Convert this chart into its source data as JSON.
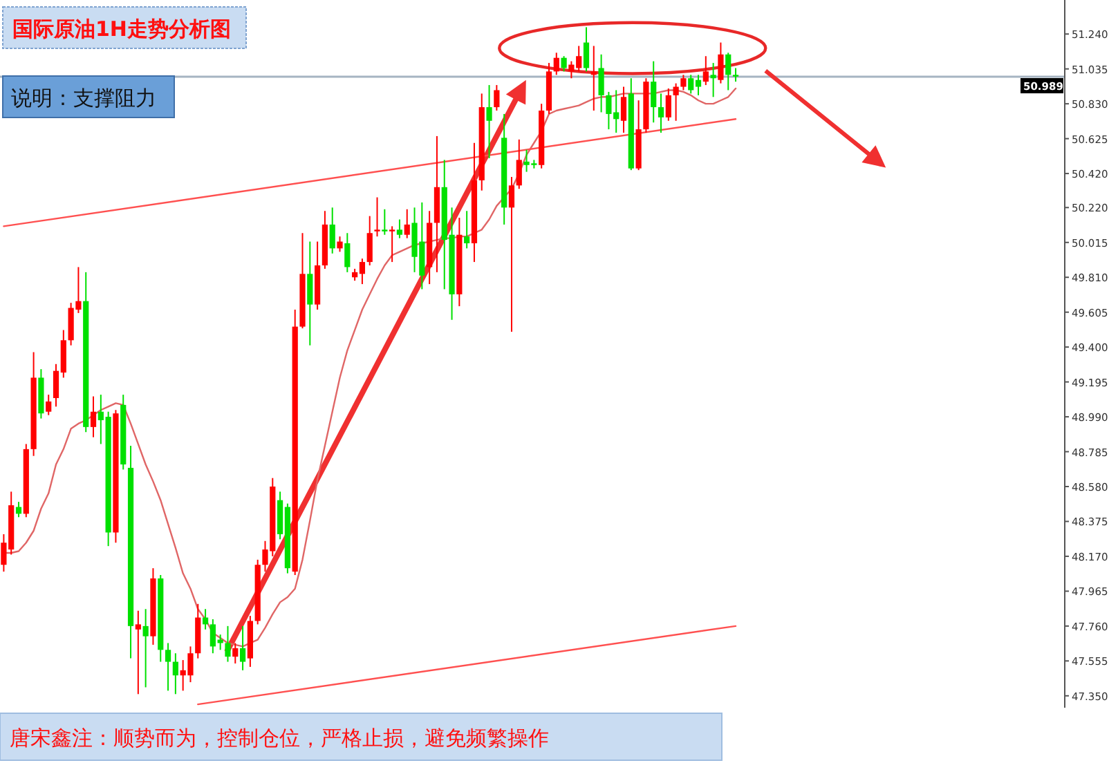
{
  "chart_data": {
    "type": "candlestick",
    "title": "国际原油1H走势分析图",
    "subtitle": "说明：支撑阻力",
    "annotations": [
      "唐宋鑫注：顺势而为，控制仓位，严格止损，避免频繁操作"
    ],
    "categories": [
      null,
      null,
      null,
      null,
      null,
      null,
      null,
      null,
      null,
      null,
      null,
      null,
      null,
      null,
      null,
      null,
      null,
      null,
      null,
      null,
      null,
      null,
      null,
      null,
      null,
      null,
      null,
      null,
      null,
      null,
      null,
      null,
      null,
      null,
      null,
      null,
      null,
      null,
      null,
      null,
      null,
      null,
      null,
      null,
      null,
      null,
      null,
      null,
      null,
      null,
      null,
      null,
      null,
      null,
      null,
      null,
      null,
      null,
      null,
      null,
      null,
      null,
      null,
      null,
      null,
      null,
      null,
      null,
      null,
      null,
      null,
      null,
      null,
      null,
      null,
      null,
      null,
      null,
      null,
      null,
      null,
      null,
      null,
      null,
      null,
      null,
      null,
      null,
      null,
      null,
      null,
      null,
      null,
      null,
      null,
      null,
      null,
      null,
      null
    ],
    "ohlc": [
      [
        48.12,
        48.3,
        48.08,
        48.25
      ],
      [
        48.21,
        48.55,
        48.18,
        48.47
      ],
      [
        48.46,
        48.49,
        48.4,
        48.42
      ],
      [
        48.42,
        48.83,
        48.4,
        48.8
      ],
      [
        48.8,
        49.37,
        48.76,
        49.22
      ],
      [
        49.22,
        49.27,
        48.98,
        49.01
      ],
      [
        49.02,
        49.12,
        49.0,
        49.08
      ],
      [
        49.1,
        49.3,
        49.05,
        49.26
      ],
      [
        49.25,
        49.5,
        49.22,
        49.44
      ],
      [
        49.44,
        49.66,
        49.41,
        49.63
      ],
      [
        49.62,
        49.87,
        49.6,
        49.67
      ],
      [
        49.67,
        49.84,
        48.9,
        48.93
      ],
      [
        48.93,
        49.11,
        48.87,
        49.02
      ],
      [
        49.02,
        49.12,
        48.83,
        48.97
      ],
      [
        48.99,
        49.02,
        48.23,
        48.31
      ],
      [
        48.31,
        49.03,
        48.25,
        49.01
      ],
      [
        49.06,
        49.12,
        48.68,
        48.71
      ],
      [
        48.69,
        48.82,
        47.57,
        47.76
      ],
      [
        47.74,
        47.85,
        47.36,
        47.77
      ],
      [
        47.76,
        47.86,
        47.4,
        47.7
      ],
      [
        47.7,
        48.1,
        47.65,
        48.04
      ],
      [
        48.04,
        48.06,
        47.55,
        47.62
      ],
      [
        47.62,
        47.66,
        47.38,
        47.55
      ],
      [
        47.55,
        47.6,
        47.36,
        47.47
      ],
      [
        47.47,
        47.56,
        47.38,
        47.5
      ],
      [
        47.47,
        47.64,
        47.43,
        47.6
      ],
      [
        47.6,
        47.89,
        47.57,
        47.81
      ],
      [
        47.81,
        47.86,
        47.74,
        47.77
      ],
      [
        47.77,
        47.8,
        47.6,
        47.64
      ],
      [
        47.68,
        47.71,
        47.62,
        47.66
      ],
      [
        47.66,
        47.76,
        47.55,
        47.58
      ],
      [
        47.58,
        47.66,
        47.54,
        47.63
      ],
      [
        47.63,
        47.76,
        47.5,
        47.55
      ],
      [
        47.57,
        47.82,
        47.52,
        47.79
      ],
      [
        47.79,
        48.15,
        47.77,
        48.12
      ],
      [
        48.12,
        48.26,
        48.08,
        48.21
      ],
      [
        48.2,
        48.63,
        48.17,
        48.58
      ],
      [
        48.5,
        48.55,
        48.27,
        48.3
      ],
      [
        48.46,
        48.48,
        48.07,
        48.1
      ],
      [
        48.08,
        49.62,
        48.06,
        49.52
      ],
      [
        49.52,
        50.07,
        49.51,
        49.83
      ],
      [
        49.83,
        50.02,
        49.41,
        49.65
      ],
      [
        49.65,
        50.02,
        49.62,
        49.88
      ],
      [
        49.88,
        50.2,
        49.86,
        50.12
      ],
      [
        50.12,
        50.22,
        49.95,
        49.98
      ],
      [
        49.98,
        50.05,
        49.96,
        50.02
      ],
      [
        50.01,
        50.07,
        49.84,
        49.87
      ],
      [
        49.81,
        49.86,
        49.79,
        49.84
      ],
      [
        49.83,
        49.92,
        49.77,
        49.9
      ],
      [
        49.9,
        50.17,
        49.88,
        50.07
      ],
      [
        50.08,
        50.28,
        50.05,
        50.09
      ],
      [
        50.09,
        50.21,
        50.06,
        50.08
      ],
      [
        50.08,
        50.11,
        49.9,
        50.09
      ],
      [
        50.09,
        50.15,
        50.04,
        50.06
      ],
      [
        50.06,
        50.21,
        50.04,
        50.12
      ],
      [
        50.13,
        50.22,
        49.84,
        49.93
      ],
      [
        50.02,
        50.25,
        49.74,
        49.82
      ],
      [
        49.87,
        50.2,
        49.77,
        50.13
      ],
      [
        50.13,
        50.64,
        49.84,
        50.34
      ],
      [
        50.34,
        50.5,
        49.74,
        50.03
      ],
      [
        50.06,
        50.22,
        49.56,
        49.71
      ],
      [
        49.71,
        50.16,
        49.64,
        50.06
      ],
      [
        50.05,
        50.2,
        49.98,
        50.01
      ],
      [
        50.01,
        50.6,
        49.9,
        50.38
      ],
      [
        50.38,
        50.89,
        50.32,
        50.81
      ],
      [
        50.81,
        50.94,
        50.51,
        50.73
      ],
      [
        50.81,
        50.94,
        50.79,
        50.91
      ],
      [
        50.63,
        50.77,
        50.12,
        50.22
      ],
      [
        50.22,
        50.4,
        49.49,
        50.35
      ],
      [
        50.35,
        50.62,
        50.33,
        50.5
      ],
      [
        50.49,
        50.56,
        50.43,
        50.47
      ],
      [
        50.48,
        50.5,
        50.45,
        50.47
      ],
      [
        50.47,
        50.83,
        50.45,
        50.79
      ],
      [
        50.79,
        51.07,
        50.77,
        51.02
      ],
      [
        51.02,
        51.13,
        51.0,
        51.1
      ],
      [
        51.1,
        51.11,
        51.02,
        51.04
      ],
      [
        51.02,
        51.08,
        50.98,
        51.06
      ],
      [
        51.04,
        51.17,
        51.02,
        51.11
      ],
      [
        51.19,
        51.28,
        51.02,
        51.04
      ],
      [
        51.0,
        51.17,
        50.79,
        51.02
      ],
      [
        51.04,
        51.12,
        50.78,
        50.88
      ],
      [
        50.88,
        50.9,
        50.68,
        50.77
      ],
      [
        50.78,
        50.91,
        50.66,
        50.74
      ],
      [
        50.73,
        50.93,
        50.66,
        50.87
      ],
      [
        50.89,
        50.98,
        50.44,
        50.45
      ],
      [
        50.45,
        50.85,
        50.44,
        50.68
      ],
      [
        50.68,
        50.98,
        50.66,
        50.96
      ],
      [
        50.96,
        51.08,
        50.72,
        50.81
      ],
      [
        50.81,
        50.89,
        50.66,
        50.75
      ],
      [
        50.75,
        50.92,
        50.73,
        50.88
      ],
      [
        50.88,
        50.95,
        50.73,
        50.93
      ],
      [
        50.93,
        51.0,
        50.91,
        50.98
      ],
      [
        50.98,
        51.0,
        50.89,
        50.91
      ],
      [
        50.97,
        51.0,
        50.88,
        50.93
      ],
      [
        50.96,
        51.11,
        50.94,
        51.02
      ],
      [
        51.0,
        51.07,
        50.87,
        50.98
      ],
      [
        50.97,
        51.19,
        50.95,
        51.12
      ],
      [
        51.12,
        51.13,
        50.91,
        51.0
      ],
      [
        51.0,
        51.04,
        50.96,
        50.99
      ]
    ],
    "colors": [
      "#ff0000",
      "#ff0000",
      "#00e000",
      "#ff0000",
      "#ff0000",
      "#00e000",
      "#ff0000",
      "#ff0000",
      "#ff0000",
      "#ff0000",
      "#ff0000",
      "#00e000",
      "#ff0000",
      "#00e000",
      "#00e000",
      "#ff0000",
      "#00e000",
      "#00e000",
      "#ff0000",
      "#00e000",
      "#ff0000",
      "#00e000",
      "#00e000",
      "#00e000",
      "#ff0000",
      "#ff0000",
      "#ff0000",
      "#00e000",
      "#00e000",
      "#00e000",
      "#00e000",
      "#ff0000",
      "#00e000",
      "#ff0000",
      "#ff0000",
      "#ff0000",
      "#ff0000",
      "#00e000",
      "#00e000",
      "#ff0000",
      "#ff0000",
      "#00e000",
      "#ff0000",
      "#ff0000",
      "#00e000",
      "#ff0000",
      "#00e000",
      "#ff0000",
      "#ff0000",
      "#ff0000",
      "#ff0000",
      "#00e000",
      "#ff0000",
      "#00e000",
      "#ff0000",
      "#00e000",
      "#00e000",
      "#ff0000",
      "#ff0000",
      "#00e000",
      "#00e000",
      "#ff0000",
      "#00e000",
      "#ff0000",
      "#ff0000",
      "#00e000",
      "#ff0000",
      "#00e000",
      "#ff0000",
      "#ff0000",
      "#00e000",
      "#00e000",
      "#ff0000",
      "#ff0000",
      "#ff0000",
      "#00e000",
      "#ff0000",
      "#ff0000",
      "#00e000",
      "#ff0000",
      "#00e000",
      "#00e000",
      "#00e000",
      "#ff0000",
      "#00e000",
      "#ff0000",
      "#ff0000",
      "#00e000",
      "#00e000",
      "#ff0000",
      "#ff0000",
      "#ff0000",
      "#00e000",
      "#00e000",
      "#ff0000",
      "#00e000",
      "#ff0000",
      "#00e000",
      "#00e000"
    ],
    "series": [
      {
        "type": "line",
        "color": "#e06666",
        "values": [
          48.19,
          48.19,
          48.2,
          48.25,
          48.32,
          48.45,
          48.54,
          48.71,
          48.8,
          48.92,
          48.95,
          48.97,
          49.0,
          49.03,
          49.05,
          49.07,
          49.06,
          48.95,
          48.83,
          48.71,
          48.61,
          48.5,
          48.36,
          48.22,
          48.07,
          47.98,
          47.86,
          47.8,
          47.72,
          47.69,
          47.66,
          47.65,
          47.64,
          47.66,
          47.68,
          47.75,
          47.83,
          47.9,
          47.93,
          47.98,
          48.15,
          48.38,
          48.62,
          48.82,
          49.02,
          49.22,
          49.38,
          49.5,
          49.62,
          49.71,
          49.8,
          49.88,
          49.94,
          49.96,
          49.98,
          50.0,
          50.01,
          50.02,
          50.03,
          50.04,
          50.04,
          50.05,
          50.05,
          50.07,
          50.09,
          50.15,
          50.23,
          50.28,
          50.33,
          50.42,
          50.53,
          50.6,
          50.67,
          50.77,
          50.79,
          50.8,
          50.81,
          50.82,
          50.84,
          50.86,
          50.87,
          50.87,
          50.88,
          50.89,
          50.89,
          50.89,
          50.89,
          50.89,
          50.9,
          50.91,
          50.91,
          50.9,
          50.88,
          50.85,
          50.83,
          50.83,
          50.85,
          50.87,
          50.92
        ]
      },
      {
        "type": "line",
        "color": "#ff5050",
        "values": [
          50.11,
          null,
          null,
          null,
          null,
          null,
          null,
          null,
          null,
          null,
          null,
          null,
          null,
          null,
          null,
          null,
          null,
          null,
          null,
          null,
          null,
          null,
          null,
          null,
          null,
          null,
          null,
          null,
          null,
          null,
          null,
          null,
          null,
          null,
          null,
          null,
          null,
          null,
          null,
          null,
          null,
          null,
          null,
          null,
          null,
          null,
          null,
          null,
          null,
          null,
          null,
          null,
          null,
          null,
          null,
          null,
          null,
          null,
          null,
          null,
          null,
          null,
          null,
          null,
          null,
          null,
          null,
          null,
          null,
          null,
          null,
          null,
          null,
          null,
          null,
          null,
          null,
          null,
          null,
          null,
          null,
          null,
          null,
          null,
          null,
          null,
          null,
          null,
          null,
          null,
          null,
          null,
          null,
          null,
          null,
          null,
          null,
          null,
          50.74
        ]
      },
      {
        "type": "line",
        "color": "#ff5050",
        "values": [
          null,
          null,
          null,
          null,
          null,
          null,
          null,
          null,
          null,
          null,
          null,
          null,
          null,
          null,
          null,
          null,
          null,
          null,
          null,
          null,
          null,
          null,
          null,
          null,
          null,
          null,
          47.3,
          null,
          null,
          null,
          null,
          null,
          null,
          null,
          null,
          null,
          null,
          null,
          null,
          null,
          null,
          null,
          null,
          null,
          null,
          null,
          null,
          null,
          null,
          null,
          null,
          null,
          null,
          null,
          null,
          null,
          null,
          null,
          null,
          null,
          null,
          null,
          null,
          null,
          null,
          null,
          null,
          null,
          null,
          null,
          null,
          null,
          null,
          null,
          null,
          null,
          null,
          null,
          null,
          null,
          null,
          null,
          null,
          null,
          null,
          null,
          null,
          null,
          null,
          null,
          null,
          null,
          null,
          null,
          null,
          null,
          null,
          null,
          47.76
        ]
      }
    ],
    "ref_lines": [
      {
        "axis": "y",
        "value": 50.989,
        "label": "50.989",
        "color": "#a6b4c2"
      }
    ],
    "ylim": [
      47.28,
      51.44
    ],
    "yticks": [
      {
        "value": 51.24,
        "label": "51.240"
      },
      {
        "value": 51.035,
        "label": "51.035"
      },
      {
        "value": 50.83,
        "label": "50.830"
      },
      {
        "value": 50.625,
        "label": "50.625"
      },
      {
        "value": 50.42,
        "label": "50.420"
      },
      {
        "value": 50.22,
        "label": "50.220"
      },
      {
        "value": 50.015,
        "label": "50.015"
      },
      {
        "value": 49.81,
        "label": "49.810"
      },
      {
        "value": 49.605,
        "label": "49.605"
      },
      {
        "value": 49.4,
        "label": "49.400"
      },
      {
        "value": 49.195,
        "label": "49.195"
      },
      {
        "value": 48.99,
        "label": "48.990"
      },
      {
        "value": 48.785,
        "label": "48.785"
      },
      {
        "value": 48.58,
        "label": "48.580"
      },
      {
        "value": 48.375,
        "label": "48.375"
      },
      {
        "value": 48.17,
        "label": "48.170"
      },
      {
        "value": 47.965,
        "label": "47.965"
      },
      {
        "value": 47.76,
        "label": "47.760"
      },
      {
        "value": 47.555,
        "label": "47.555"
      },
      {
        "value": 47.35,
        "label": "47.350"
      }
    ],
    "tick_labels": "y"
  }
}
